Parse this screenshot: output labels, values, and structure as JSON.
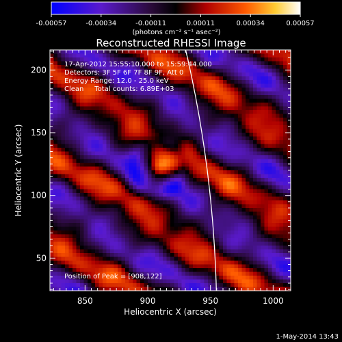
{
  "chart_data": {
    "type": "heatmap",
    "title": "Reconstructed RHESSI Image",
    "xlabel": "Heliocentric X (arcsec)",
    "ylabel": "Heliocentric Y (arcsec)",
    "xlim": [
      822,
      1014
    ],
    "ylim": [
      24,
      216
    ],
    "x_ticks": [
      850,
      900,
      950,
      1000
    ],
    "y_ticks": [
      50,
      100,
      150,
      200
    ],
    "colorbar": {
      "ticks": [
        "-0.00057",
        "-0.00034",
        "-0.00011",
        "0.00011",
        "0.00034",
        "0.00057"
      ],
      "range": [
        -0.00057,
        0.00057
      ],
      "units": "(photons cm⁻² s⁻¹ asec⁻²)"
    },
    "annotations": [
      "17-Apr-2012 15:55:10.000 to 15:59:44.000",
      "Detectors: 3F 5F 6F 7F 8F 9F, Att 0",
      "Energy Range: 12.0 - 25.0 keV",
      "Clean     Total counts: 6.89E+03"
    ],
    "peak_label": "Position of Peak = [908,122]",
    "peak": {
      "x": 908,
      "y": 122,
      "value": 0.00057
    },
    "footer_timestamp": "1-May-2014 13:43",
    "grid": false
  }
}
